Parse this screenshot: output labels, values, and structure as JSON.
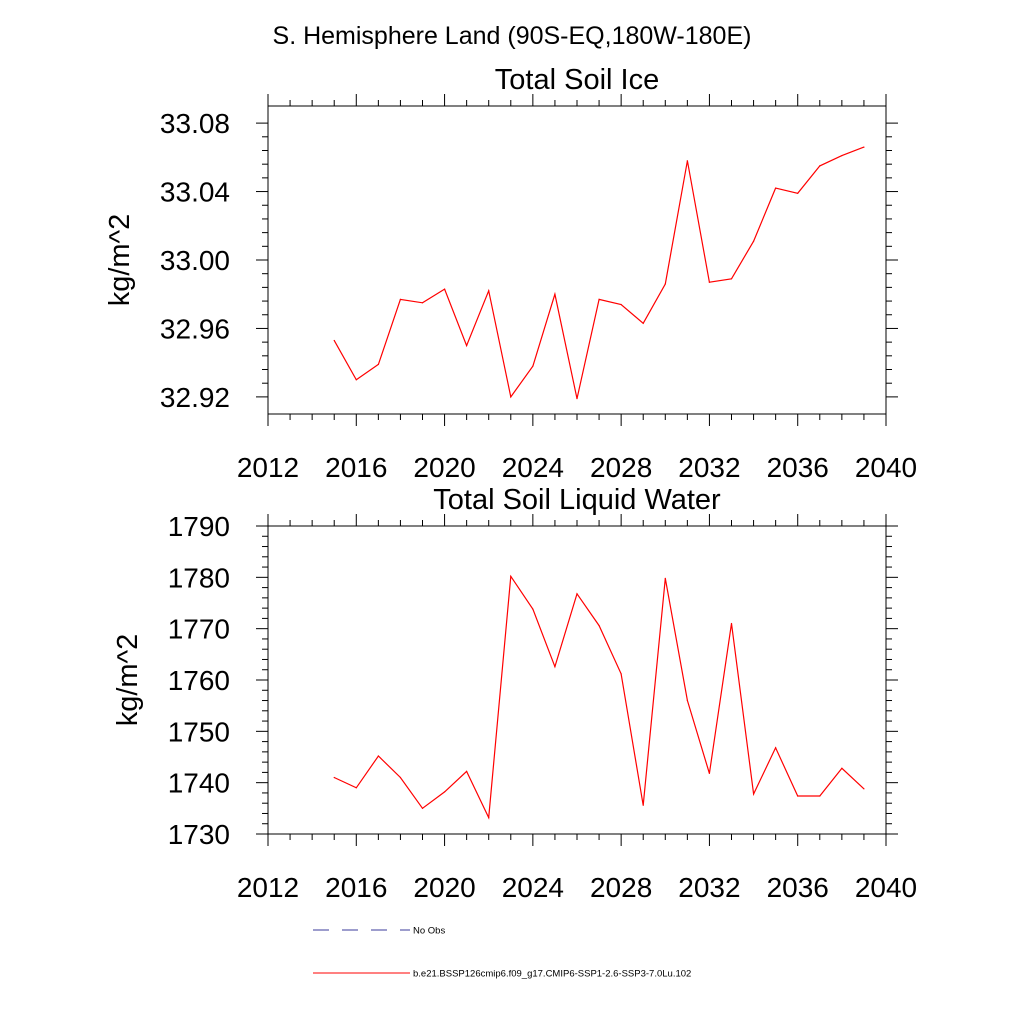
{
  "figure_title": "S. Hemisphere Land (90S-EQ,180W-180E)",
  "chart_data": [
    {
      "type": "line",
      "title": "Total Soil Ice",
      "xlabel": "",
      "ylabel": "kg/m^2",
      "xlim": [
        2012,
        2040
      ],
      "ylim": [
        32.91,
        33.09
      ],
      "xticks": [
        2012,
        2016,
        2020,
        2024,
        2028,
        2032,
        2036,
        2040
      ],
      "yticks": [
        32.92,
        32.96,
        33.0,
        33.04,
        33.08
      ],
      "ytick_labels": [
        "32.92",
        "32.96",
        "33.00",
        "33.04",
        "33.08"
      ],
      "grid": false,
      "series": [
        {
          "name": "b.e21.BSSP126cmip6.f09_g17.CMIP6-SSP1-2.6-SSP3-7.0Lu.102",
          "color": "#ff0000",
          "x": [
            2015,
            2016,
            2017,
            2018,
            2019,
            2020,
            2021,
            2022,
            2023,
            2024,
            2025,
            2026,
            2027,
            2028,
            2029,
            2030,
            2031,
            2032,
            2033,
            2034,
            2035,
            2036,
            2037,
            2038,
            2039
          ],
          "values": [
            32.953,
            32.93,
            32.939,
            32.977,
            32.975,
            32.983,
            32.95,
            32.982,
            32.92,
            32.938,
            32.98,
            32.919,
            32.977,
            32.974,
            32.963,
            32.986,
            33.058,
            32.987,
            32.989,
            33.011,
            33.042,
            33.039,
            33.055,
            33.061,
            33.066
          ]
        }
      ]
    },
    {
      "type": "line",
      "title": "Total Soil Liquid Water",
      "xlabel": "",
      "ylabel": "kg/m^2",
      "xlim": [
        2012,
        2040
      ],
      "ylim": [
        1730,
        1790
      ],
      "xticks": [
        2012,
        2016,
        2020,
        2024,
        2028,
        2032,
        2036,
        2040
      ],
      "yticks": [
        1730,
        1740,
        1750,
        1760,
        1770,
        1780,
        1790
      ],
      "ytick_labels": [
        "1730",
        "1740",
        "1750",
        "1760",
        "1770",
        "1780",
        "1790"
      ],
      "grid": false,
      "series": [
        {
          "name": "b.e21.BSSP126cmip6.f09_g17.CMIP6-SSP1-2.6-SSP3-7.0Lu.102",
          "color": "#ff0000",
          "x": [
            2015,
            2016,
            2017,
            2018,
            2019,
            2020,
            2021,
            2022,
            2023,
            2024,
            2025,
            2026,
            2027,
            2028,
            2029,
            2030,
            2031,
            2032,
            2033,
            2034,
            2035,
            2036,
            2037,
            2038,
            2039
          ],
          "values": [
            1741,
            1739,
            1745.2,
            1741,
            1735,
            1738.2,
            1742.2,
            1733.2,
            1780.2,
            1773.8,
            1762.6,
            1776.8,
            1770.6,
            1761.2,
            1735.6,
            1779.8,
            1756,
            1741.8,
            1771,
            1737.8,
            1746.8,
            1737.4,
            1737.4,
            1742.8,
            1738.8
          ]
        }
      ]
    }
  ],
  "legend": {
    "placement": "bottom",
    "entries": [
      {
        "label": "No Obs",
        "color": "#3b3b9b",
        "style": "dashed"
      },
      {
        "label": "b.e21.BSSP126cmip6.f09_g17.CMIP6-SSP1-2.6-SSP3-7.0Lu.102",
        "color": "#ff0000",
        "style": "solid"
      }
    ]
  }
}
